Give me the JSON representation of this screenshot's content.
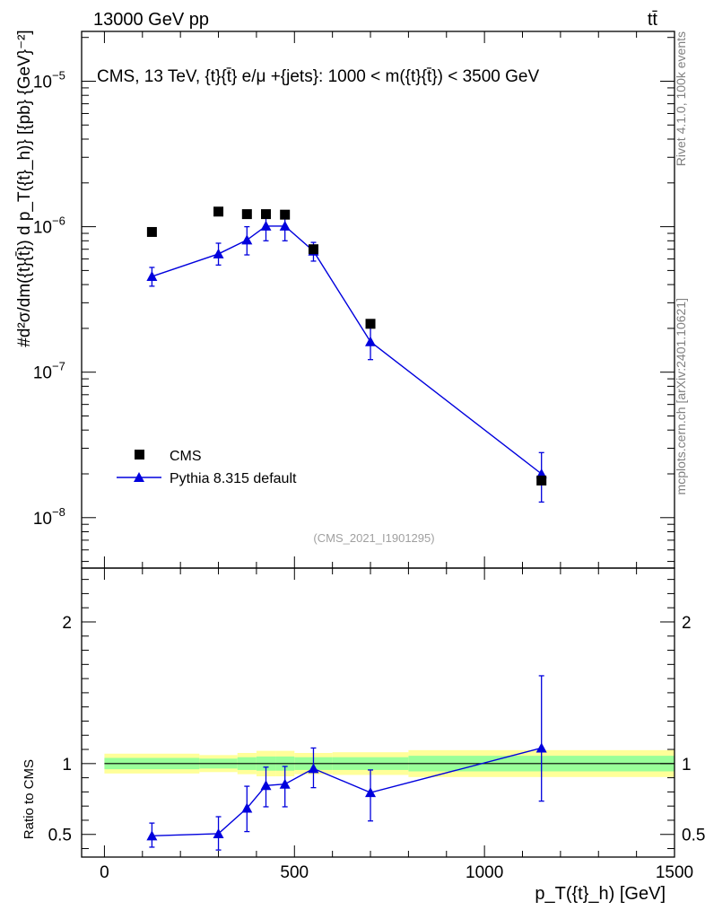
{
  "header": {
    "left": "13000 GeV pp",
    "right": "tt̄"
  },
  "sidebar": {
    "rivet": "Rivet 4.1.0,  100k events",
    "mcplots": "mcplots.cern.ch [arXiv:2401.10621]"
  },
  "colors": {
    "mc": "#0000dd",
    "data": "#000000",
    "band_inner": "#99ff99",
    "band_outer": "#ffff99"
  },
  "chart_data": [
    {
      "type": "scatter",
      "panel": "main",
      "title": "CMS, 13 TeV, {t}{t̄} e/μ +{jets}: 1000 < m({t}{t̄}) < 3500 GeV",
      "analysis_id": "(CMS_2021_I1901295)",
      "ylabel": "#d²σ/dm({t}{t̄}) d p_T({t}_h)} [{pb} {GeV}⁻²]",
      "yscale": "log",
      "ylim": [
        4.5e-09,
        2.2e-05
      ],
      "xlim": [
        -60,
        1500
      ],
      "ytick_labels": [
        {
          "base": "10",
          "exp": "−8"
        },
        {
          "base": "10",
          "exp": "−7"
        },
        {
          "base": "10",
          "exp": "−6"
        },
        {
          "base": "10",
          "exp": "−5"
        }
      ],
      "legend": {
        "location": "lower-left",
        "entries": [
          "CMS",
          "Pythia 8.315 default"
        ]
      },
      "series": [
        {
          "name": "CMS",
          "marker": "square",
          "points": [
            {
              "x": 125,
              "y": 9.2e-07,
              "xlo": 0,
              "xhi": 250
            },
            {
              "x": 300,
              "y": 1.27e-06,
              "xlo": 250,
              "xhi": 350
            },
            {
              "x": 375,
              "y": 1.22e-06,
              "xlo": 350,
              "xhi": 400
            },
            {
              "x": 425,
              "y": 1.22e-06,
              "xlo": 400,
              "xhi": 450
            },
            {
              "x": 475,
              "y": 1.21e-06,
              "xlo": 450,
              "xhi": 500
            },
            {
              "x": 550,
              "y": 7e-07,
              "xlo": 500,
              "xhi": 600
            },
            {
              "x": 700,
              "y": 2.15e-07,
              "xlo": 600,
              "xhi": 800
            },
            {
              "x": 1150,
              "y": 1.8e-08,
              "xlo": 800,
              "xhi": 1500
            }
          ]
        },
        {
          "name": "Pythia 8.315 default",
          "marker": "triangle",
          "points": [
            {
              "x": 125,
              "y": 4.55e-07,
              "ylo": 3.9e-07,
              "yhi": 5.25e-07
            },
            {
              "x": 300,
              "y": 6.5e-07,
              "ylo": 5.45e-07,
              "yhi": 7.7e-07
            },
            {
              "x": 375,
              "y": 8.1e-07,
              "ylo": 6.4e-07,
              "yhi": 1e-06
            },
            {
              "x": 425,
              "y": 1.01e-06,
              "ylo": 8e-07,
              "yhi": 1.2e-06
            },
            {
              "x": 475,
              "y": 1.01e-06,
              "ylo": 8e-07,
              "yhi": 1.2e-06
            },
            {
              "x": 550,
              "y": 6.8e-07,
              "ylo": 5.8e-07,
              "yhi": 7.8e-07
            },
            {
              "x": 700,
              "y": 1.62e-07,
              "ylo": 1.22e-07,
              "yhi": 2.05e-07
            },
            {
              "x": 1150,
              "y": 2e-08,
              "ylo": 1.28e-08,
              "yhi": 2.8e-08
            }
          ]
        }
      ]
    },
    {
      "type": "scatter",
      "panel": "ratio",
      "xlabel": "p_T({t}_h) [GeV]",
      "ylabel": "Ratio to CMS",
      "ylim": [
        0.34,
        2.38
      ],
      "xlim": [
        -60,
        1500
      ],
      "xticks": [
        0,
        500,
        1000,
        1500
      ],
      "yticks": [
        0.5,
        1,
        2
      ],
      "bands": [
        {
          "xlo": 0,
          "xhi": 250,
          "inner": 0.04,
          "outer": 0.07
        },
        {
          "xlo": 250,
          "xhi": 350,
          "inner": 0.035,
          "outer": 0.06
        },
        {
          "xlo": 350,
          "xhi": 400,
          "inner": 0.045,
          "outer": 0.075
        },
        {
          "xlo": 400,
          "xhi": 450,
          "inner": 0.05,
          "outer": 0.09
        },
        {
          "xlo": 450,
          "xhi": 500,
          "inner": 0.05,
          "outer": 0.09
        },
        {
          "xlo": 500,
          "xhi": 600,
          "inner": 0.045,
          "outer": 0.075
        },
        {
          "xlo": 600,
          "xhi": 800,
          "inner": 0.045,
          "outer": 0.08
        },
        {
          "xlo": 800,
          "xhi": 1500,
          "inner": 0.055,
          "outer": 0.095
        }
      ],
      "series": [
        {
          "name": "Pythia 8.315 default",
          "marker": "triangle",
          "points": [
            {
              "x": 125,
              "y": 0.49,
              "ylo": 0.41,
              "yhi": 0.58
            },
            {
              "x": 300,
              "y": 0.505,
              "ylo": 0.39,
              "yhi": 0.625
            },
            {
              "x": 375,
              "y": 0.685,
              "ylo": 0.52,
              "yhi": 0.84
            },
            {
              "x": 425,
              "y": 0.845,
              "ylo": 0.695,
              "yhi": 0.975
            },
            {
              "x": 475,
              "y": 0.855,
              "ylo": 0.695,
              "yhi": 0.98
            },
            {
              "x": 550,
              "y": 0.965,
              "ylo": 0.83,
              "yhi": 1.11
            },
            {
              "x": 700,
              "y": 0.795,
              "ylo": 0.595,
              "yhi": 0.955
            },
            {
              "x": 1150,
              "y": 1.11,
              "ylo": 0.735,
              "yhi": 1.62
            }
          ]
        }
      ]
    }
  ]
}
